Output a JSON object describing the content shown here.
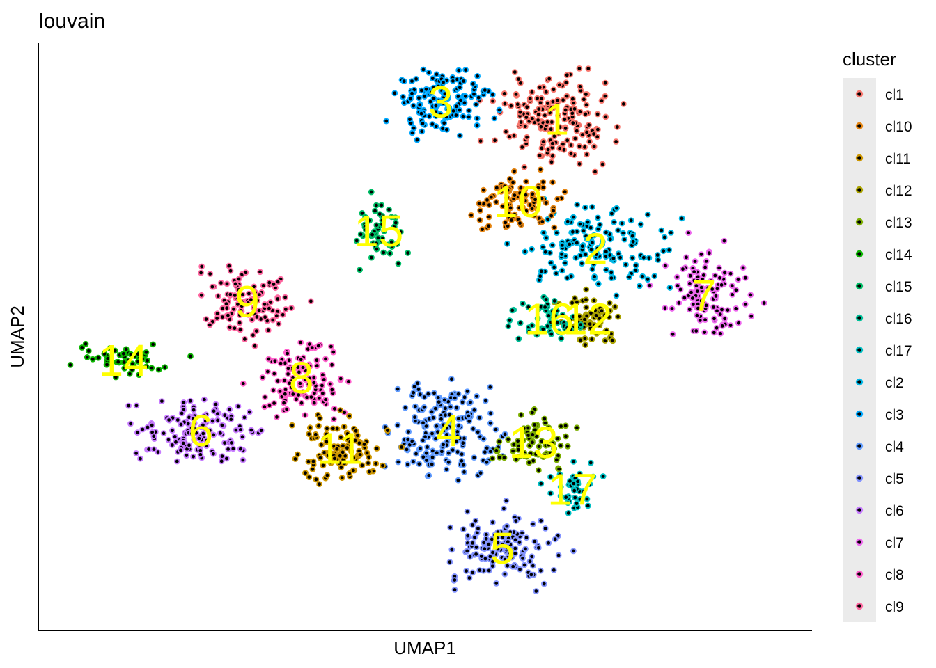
{
  "chart_data": {
    "type": "scatter",
    "title": "louvain",
    "xlabel": "UMAP1",
    "ylabel": "UMAP2",
    "axes_ticks": false,
    "grid": false,
    "legend": {
      "title": "cluster",
      "placement": "right",
      "entries": [
        {
          "name": "cl1",
          "color": "#F8766D"
        },
        {
          "name": "cl10",
          "color": "#E68613"
        },
        {
          "name": "cl11",
          "color": "#CD9600"
        },
        {
          "name": "cl12",
          "color": "#ABA300"
        },
        {
          "name": "cl13",
          "color": "#7CAE00"
        },
        {
          "name": "cl14",
          "color": "#0CB702"
        },
        {
          "name": "cl15",
          "color": "#00BE67"
        },
        {
          "name": "cl16",
          "color": "#00C19A"
        },
        {
          "name": "cl17",
          "color": "#00BFC4"
        },
        {
          "name": "cl2",
          "color": "#00B8E7"
        },
        {
          "name": "cl3",
          "color": "#00A9FF"
        },
        {
          "name": "cl4",
          "color": "#619CFF"
        },
        {
          "name": "cl5",
          "color": "#8494FF"
        },
        {
          "name": "cl6",
          "color": "#C77CFF"
        },
        {
          "name": "cl7",
          "color": "#ED68ED"
        },
        {
          "name": "cl8",
          "color": "#FF61CC"
        },
        {
          "name": "cl9",
          "color": "#FF68A1"
        }
      ]
    },
    "cluster_labels": [
      {
        "text": "1",
        "cluster": "cl1",
        "x": 6.7,
        "y": 8.7
      },
      {
        "text": "2",
        "cluster": "cl2",
        "x": 7.2,
        "y": 6.5
      },
      {
        "text": "3",
        "cluster": "cl3",
        "x": 5.2,
        "y": 9.0
      },
      {
        "text": "4",
        "cluster": "cl4",
        "x": 5.3,
        "y": 3.4
      },
      {
        "text": "5",
        "cluster": "cl5",
        "x": 6.0,
        "y": 1.4
      },
      {
        "text": "6",
        "cluster": "cl6",
        "x": 2.1,
        "y": 3.4
      },
      {
        "text": "7",
        "cluster": "cl7",
        "x": 8.6,
        "y": 5.7
      },
      {
        "text": "8",
        "cluster": "cl8",
        "x": 3.4,
        "y": 4.3
      },
      {
        "text": "9",
        "cluster": "cl9",
        "x": 2.7,
        "y": 5.6
      },
      {
        "text": "10",
        "cluster": "cl10",
        "x": 6.2,
        "y": 7.3
      },
      {
        "text": "11",
        "cluster": "cl11",
        "x": 3.9,
        "y": 3.1
      },
      {
        "text": "12",
        "cluster": "cl12",
        "x": 7.1,
        "y": 5.3
      },
      {
        "text": "13",
        "cluster": "cl13",
        "x": 6.4,
        "y": 3.2
      },
      {
        "text": "14",
        "cluster": "cl14",
        "x": 1.1,
        "y": 4.6
      },
      {
        "text": "15",
        "cluster": "cl15",
        "x": 4.4,
        "y": 6.8
      },
      {
        "text": "16",
        "cluster": "cl16",
        "x": 6.6,
        "y": 5.3
      },
      {
        "text": "17",
        "cluster": "cl17",
        "x": 6.9,
        "y": 2.4
      }
    ],
    "xlim": [
      0,
      10
    ],
    "ylim": [
      0,
      10
    ]
  }
}
